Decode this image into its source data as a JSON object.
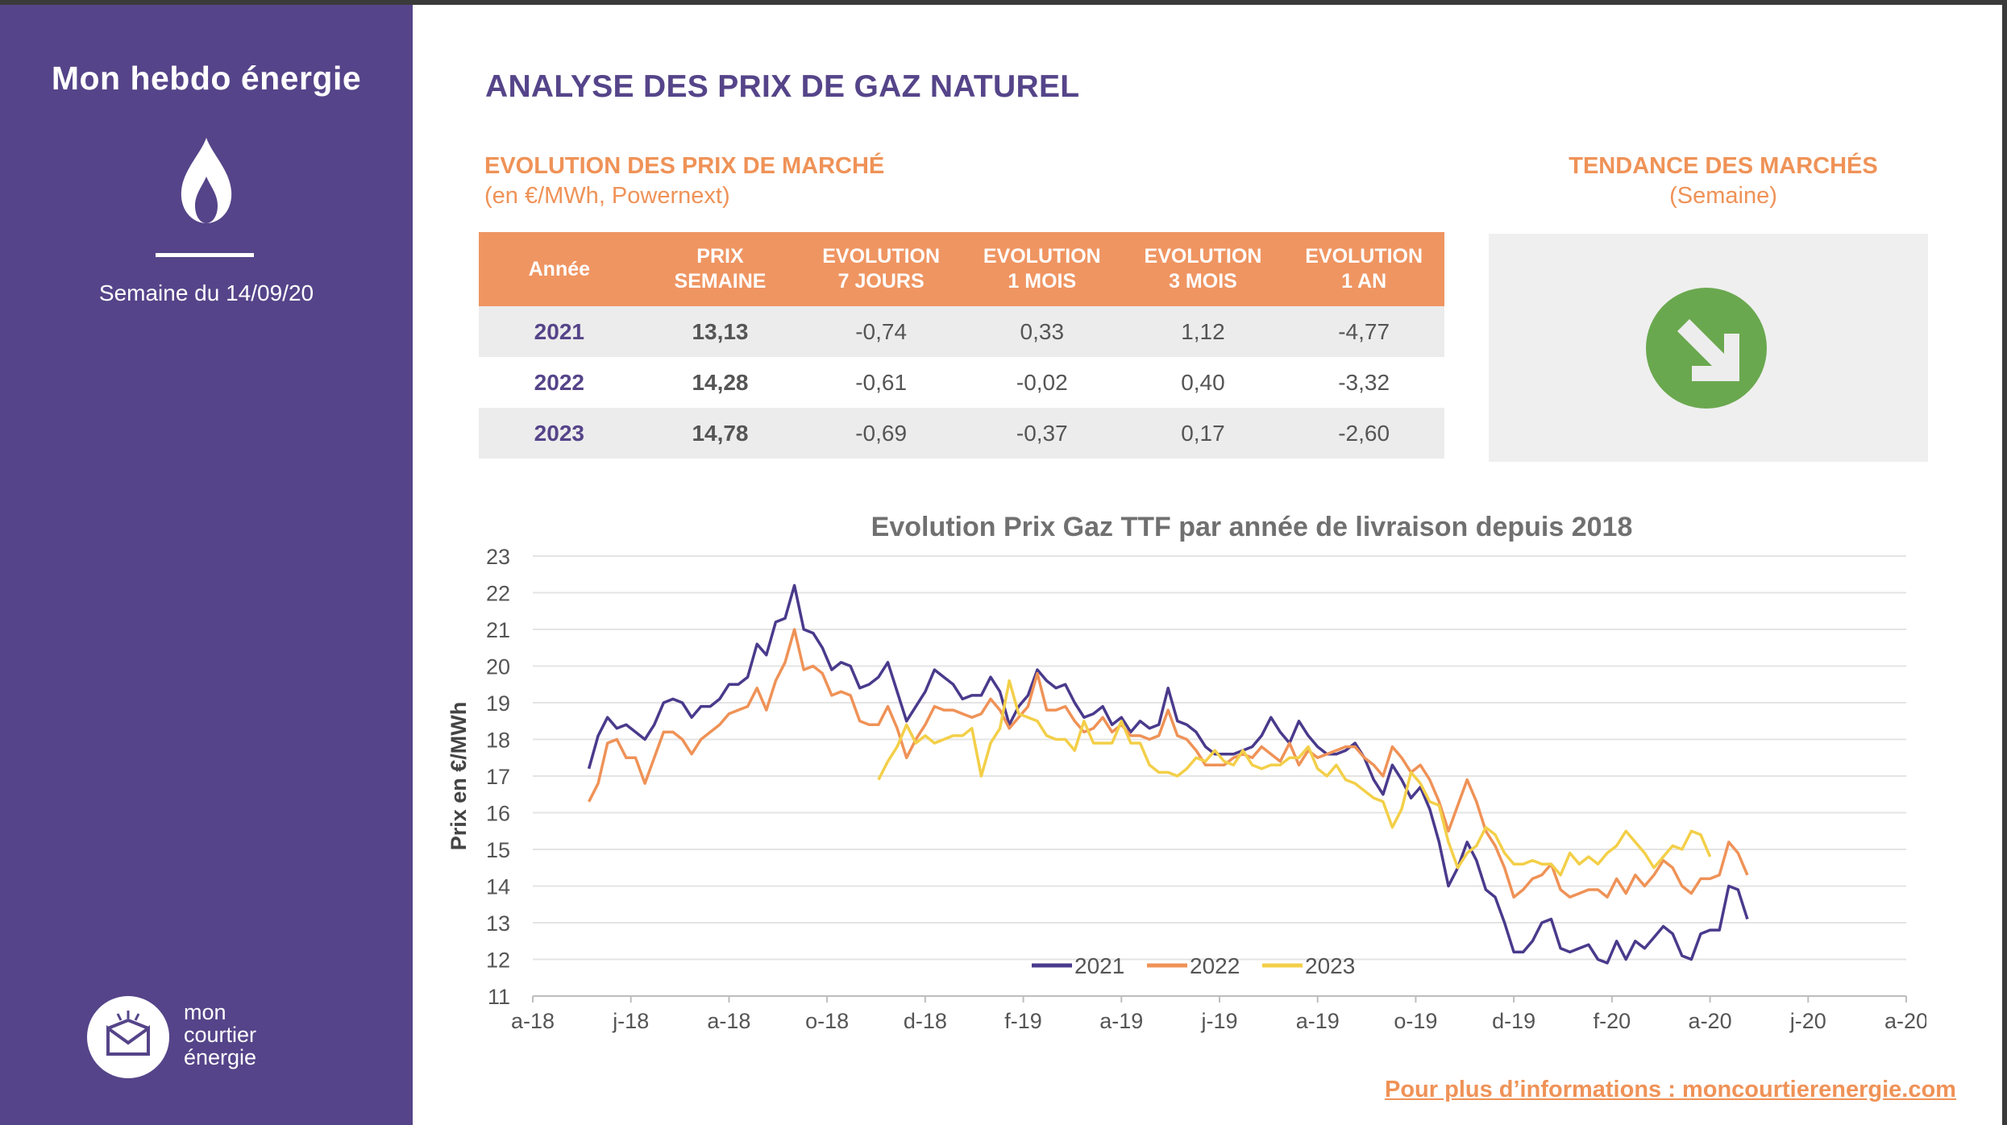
{
  "sidebar": {
    "title": "Mon hebdo énergie",
    "week": "Semaine du 14/09/20",
    "logo_lines": [
      "mon",
      "courtier",
      "énergie"
    ]
  },
  "header": {
    "title": "ANALYSE DES PRIX DE GAZ NATUREL",
    "sub_title": "EVOLUTION DES PRIX DE MARCHÉ",
    "sub_note": "(en €/MWh, Powernext)"
  },
  "trend": {
    "title": "TENDANCE DES MARCHÉS",
    "subtitle": "(Semaine)",
    "direction_icon": "arrow-down-right-icon",
    "color": "#6aa84f"
  },
  "table": {
    "headers": [
      [
        "Année"
      ],
      [
        "PRIX",
        "SEMAINE"
      ],
      [
        "EVOLUTION",
        "7 JOURS"
      ],
      [
        "EVOLUTION",
        "1 MOIS"
      ],
      [
        "EVOLUTION",
        "3 MOIS"
      ],
      [
        "EVOLUTION",
        "1 AN"
      ]
    ],
    "rows": [
      [
        "2021",
        "13,13",
        "-0,74",
        "0,33",
        "1,12",
        "-4,77"
      ],
      [
        "2022",
        "14,28",
        "-0,61",
        "-0,02",
        "0,40",
        "-3,32"
      ],
      [
        "2023",
        "14,78",
        "-0,69",
        "-0,37",
        "0,17",
        "-2,60"
      ]
    ]
  },
  "chart_data": {
    "type": "line",
    "title": "Evolution Prix Gaz TTF par année de livraison depuis 2018",
    "ylabel": "Prix en €/MWh",
    "xlabel": "",
    "ylim": [
      11,
      23
    ],
    "yticks": [
      "11",
      "12",
      "13",
      "14",
      "15",
      "16",
      "17",
      "18",
      "19",
      "20",
      "21",
      "22",
      "23"
    ],
    "x_tick_labels": [
      "a-18",
      "j-18",
      "a-18",
      "o-18",
      "d-18",
      "f-19",
      "a-19",
      "j-19",
      "a-19",
      "o-19",
      "d-19",
      "f-20",
      "a-20",
      "j-20",
      "a-20"
    ],
    "x_range_weeks": [
      0,
      147
    ],
    "grid": true,
    "legend_position": "bottom",
    "series": [
      {
        "name": "2021",
        "color": "#4a3a8c",
        "start_week": 6,
        "values": [
          17.2,
          18.1,
          18.6,
          18.3,
          18.4,
          18.2,
          18.0,
          18.4,
          19.0,
          19.1,
          19.0,
          18.6,
          18.9,
          18.9,
          19.1,
          19.5,
          19.5,
          19.7,
          20.6,
          20.3,
          21.2,
          21.3,
          22.2,
          21.0,
          20.9,
          20.5,
          19.9,
          20.1,
          20.0,
          19.4,
          19.5,
          19.7,
          20.1,
          19.3,
          18.5,
          18.9,
          19.3,
          19.9,
          19.7,
          19.5,
          19.1,
          19.2,
          19.2,
          19.7,
          19.3,
          18.4,
          18.9,
          19.2,
          19.9,
          19.6,
          19.4,
          19.5,
          19.0,
          18.6,
          18.7,
          18.9,
          18.4,
          18.6,
          18.2,
          18.5,
          18.3,
          18.4,
          19.4,
          18.5,
          18.4,
          18.2,
          17.8,
          17.6,
          17.6,
          17.6,
          17.7,
          17.8,
          18.1,
          18.6,
          18.2,
          17.9,
          18.5,
          18.1,
          17.8,
          17.6,
          17.6,
          17.7,
          17.9,
          17.5,
          16.9,
          16.5,
          17.3,
          16.9,
          16.4,
          16.7,
          16.1,
          15.2,
          14.0,
          14.5,
          15.2,
          14.7,
          13.9,
          13.7,
          13.0,
          12.2,
          12.2,
          12.5,
          13.0,
          13.1,
          12.3,
          12.2,
          12.3,
          12.4,
          12.0,
          11.9,
          12.5,
          12.0,
          12.5,
          12.3,
          12.6,
          12.9,
          12.7,
          12.1,
          12.0,
          12.7,
          12.8,
          12.8,
          14.0,
          13.9,
          13.1
        ]
      },
      {
        "name": "2022",
        "color": "#ef9257",
        "start_week": 6,
        "values": [
          16.3,
          16.8,
          17.9,
          18.0,
          17.5,
          17.5,
          16.8,
          17.5,
          18.2,
          18.2,
          18.0,
          17.6,
          18.0,
          18.2,
          18.4,
          18.7,
          18.8,
          18.9,
          19.4,
          18.8,
          19.6,
          20.1,
          21.0,
          19.9,
          20.0,
          19.8,
          19.2,
          19.3,
          19.2,
          18.5,
          18.4,
          18.4,
          18.9,
          18.3,
          17.5,
          18.0,
          18.4,
          18.9,
          18.8,
          18.8,
          18.7,
          18.6,
          18.7,
          19.1,
          18.8,
          18.3,
          18.6,
          18.9,
          19.8,
          18.8,
          18.8,
          18.9,
          18.5,
          18.2,
          18.3,
          18.6,
          18.2,
          18.4,
          18.1,
          18.1,
          18.0,
          18.1,
          18.8,
          18.1,
          18.0,
          17.7,
          17.3,
          17.3,
          17.3,
          17.5,
          17.6,
          17.5,
          17.8,
          17.6,
          17.4,
          17.9,
          17.3,
          17.7,
          17.5,
          17.6,
          17.7,
          17.8,
          17.8,
          17.5,
          17.3,
          17.0,
          17.8,
          17.5,
          17.1,
          17.3,
          16.9,
          16.3,
          15.5,
          16.2,
          16.9,
          16.3,
          15.5,
          15.1,
          14.5,
          13.7,
          13.9,
          14.2,
          14.3,
          14.6,
          13.9,
          13.7,
          13.8,
          13.9,
          13.9,
          13.7,
          14.2,
          13.8,
          14.3,
          14.0,
          14.3,
          14.7,
          14.5,
          14.0,
          13.8,
          14.2,
          14.2,
          14.3,
          15.2,
          14.9,
          14.3
        ]
      },
      {
        "name": "2023",
        "color": "#f3cf48",
        "start_week": 37,
        "values": [
          16.9,
          17.4,
          17.8,
          18.4,
          17.9,
          18.1,
          17.9,
          18.0,
          18.1,
          18.1,
          18.3,
          17.0,
          17.9,
          18.3,
          19.6,
          18.7,
          18.6,
          18.5,
          18.1,
          18.0,
          18.0,
          17.7,
          18.5,
          17.9,
          17.9,
          17.9,
          18.5,
          17.9,
          17.9,
          17.3,
          17.1,
          17.1,
          17.0,
          17.2,
          17.5,
          17.4,
          17.7,
          17.4,
          17.3,
          17.7,
          17.3,
          17.2,
          17.3,
          17.3,
          17.5,
          17.5,
          17.8,
          17.2,
          17.0,
          17.3,
          16.9,
          16.8,
          16.6,
          16.4,
          16.3,
          15.6,
          16.1,
          17.1,
          16.8,
          16.3,
          16.2,
          15.2,
          14.5,
          14.9,
          15.1,
          15.6,
          15.4,
          14.9,
          14.6,
          14.6,
          14.7,
          14.6,
          14.6,
          14.3,
          14.9,
          14.6,
          14.8,
          14.6,
          14.9,
          15.1,
          15.5,
          15.2,
          14.9,
          14.5,
          14.8,
          15.1,
          15.0,
          15.5,
          15.4,
          14.8
        ]
      }
    ]
  },
  "footer": {
    "link": "Pour plus d’informations : moncourtierenergie.com"
  }
}
